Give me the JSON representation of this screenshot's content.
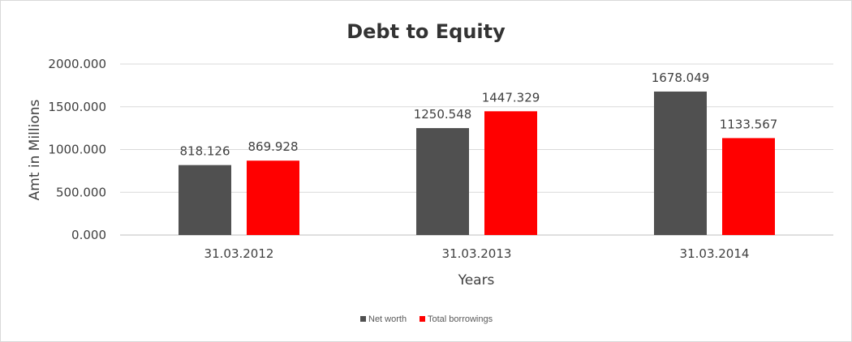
{
  "chart_data": {
    "type": "bar",
    "title": "Debt to Equity",
    "xlabel": "Years",
    "ylabel": "Amt in Millions",
    "categories": [
      "31.03.2012",
      "31.03.2013",
      "31.03.2014"
    ],
    "series": [
      {
        "name": "Net worth",
        "values": [
          818.126,
          1250.548,
          1678.049
        ],
        "color": "#505050"
      },
      {
        "name": "Total borrowings",
        "values": [
          869.928,
          1447.329,
          1133.567
        ],
        "color": "#ff0000"
      }
    ],
    "value_labels": [
      [
        "818.126",
        "1250.548",
        "1678.049"
      ],
      [
        "869.928",
        "1447.329",
        "1133.567"
      ]
    ],
    "ylim": [
      0,
      2000
    ],
    "yticks": [
      0,
      500,
      1000,
      1500,
      2000
    ],
    "ytick_labels": [
      "0.000",
      "500.000",
      "1000.000",
      "1500.000",
      "2000.000"
    ],
    "grid": true,
    "legend_position": "bottom"
  }
}
